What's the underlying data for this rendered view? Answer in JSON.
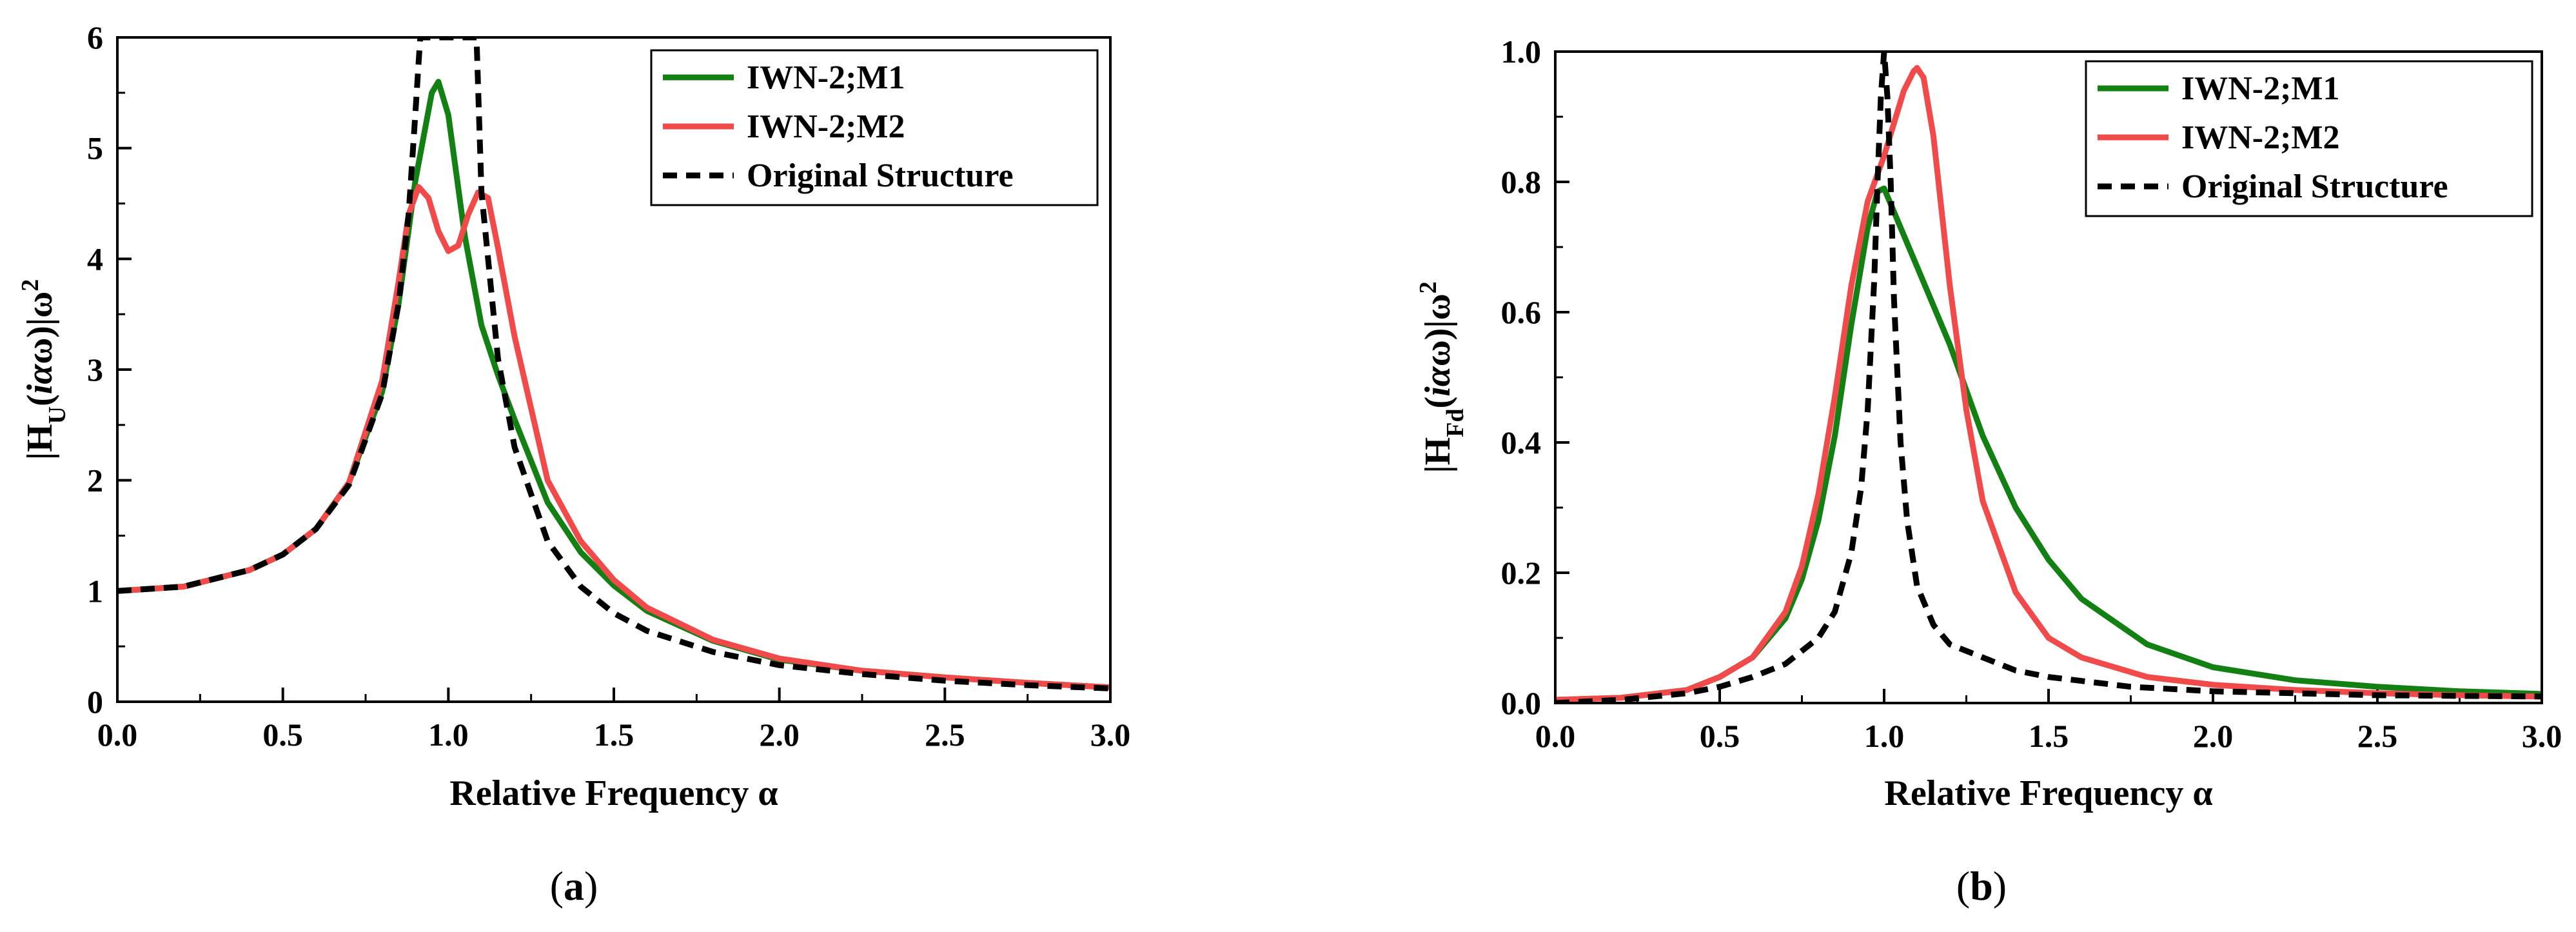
{
  "figure": {
    "panels": [
      {
        "caption_letter": "a"
      },
      {
        "caption_letter": "b"
      }
    ]
  },
  "colors": {
    "m1": "#138013",
    "m2": "#f04a4a",
    "original": "#000000"
  },
  "chart_data": [
    {
      "type": "line",
      "panel": "a",
      "xlabel": "Relative Frequency α",
      "ylabel": "|HU(iαω)|ω²",
      "xlim": [
        0,
        3
      ],
      "ylim": [
        0,
        6
      ],
      "xticks": [
        "0.0",
        "0.5",
        "1.0",
        "1.5",
        "2.0",
        "2.5",
        "3.0"
      ],
      "yticks": [
        "0",
        "1",
        "2",
        "3",
        "4",
        "5",
        "6"
      ],
      "legend_position": "top-right",
      "series": [
        {
          "name": "IWN-2;M1",
          "style": "solid",
          "color": "#138013",
          "x": [
            0,
            0.2,
            0.4,
            0.5,
            0.6,
            0.7,
            0.8,
            0.85,
            0.9,
            0.95,
            0.97,
            1.0,
            1.05,
            1.1,
            1.15,
            1.2,
            1.3,
            1.4,
            1.5,
            1.6,
            1.8,
            2.0,
            2.25,
            2.5,
            2.75,
            3.0
          ],
          "y": [
            1.0,
            1.04,
            1.19,
            1.33,
            1.56,
            1.98,
            2.8,
            3.6,
            4.7,
            5.5,
            5.6,
            5.3,
            4.2,
            3.4,
            2.95,
            2.55,
            1.8,
            1.35,
            1.05,
            0.82,
            0.55,
            0.38,
            0.28,
            0.22,
            0.17,
            0.13
          ]
        },
        {
          "name": "IWN-2;M2",
          "style": "solid",
          "color": "#f04a4a",
          "x": [
            0,
            0.2,
            0.4,
            0.5,
            0.6,
            0.7,
            0.8,
            0.85,
            0.88,
            0.91,
            0.94,
            0.97,
            1.0,
            1.03,
            1.06,
            1.09,
            1.12,
            1.15,
            1.2,
            1.3,
            1.4,
            1.5,
            1.6,
            1.8,
            2.0,
            2.25,
            2.5,
            2.75,
            3.0
          ],
          "y": [
            1.0,
            1.04,
            1.19,
            1.33,
            1.56,
            1.98,
            2.9,
            3.8,
            4.4,
            4.65,
            4.55,
            4.25,
            4.07,
            4.12,
            4.4,
            4.6,
            4.55,
            4.1,
            3.3,
            2.0,
            1.45,
            1.1,
            0.85,
            0.56,
            0.39,
            0.28,
            0.22,
            0.17,
            0.13
          ]
        },
        {
          "name": "Original Structure",
          "style": "dashed",
          "color": "#000000",
          "x": [
            0,
            0.2,
            0.4,
            0.5,
            0.6,
            0.7,
            0.8,
            0.85,
            0.88,
            0.9,
            0.915,
            1.085,
            1.1,
            1.15,
            1.2,
            1.3,
            1.4,
            1.5,
            1.6,
            1.8,
            2.0,
            2.25,
            2.5,
            2.75,
            3.0
          ],
          "y": [
            1.0,
            1.04,
            1.19,
            1.33,
            1.56,
            1.96,
            2.78,
            3.6,
            4.4,
            5.3,
            6.0,
            6.0,
            4.6,
            3.1,
            2.3,
            1.45,
            1.04,
            0.8,
            0.64,
            0.45,
            0.33,
            0.25,
            0.19,
            0.15,
            0.12
          ]
        }
      ]
    },
    {
      "type": "line",
      "panel": "b",
      "xlabel": "Relative Frequency α",
      "ylabel": "|HFd(iαω)|ω²",
      "xlim": [
        0,
        3
      ],
      "ylim": [
        0,
        1
      ],
      "xticks": [
        "0.0",
        "0.5",
        "1.0",
        "1.5",
        "2.0",
        "2.5",
        "3.0"
      ],
      "yticks": [
        "0.0",
        "0.2",
        "0.4",
        "0.6",
        "0.8",
        "1.0"
      ],
      "legend_position": "top-right",
      "series": [
        {
          "name": "IWN-2;M1",
          "style": "solid",
          "color": "#138013",
          "x": [
            0,
            0.2,
            0.4,
            0.5,
            0.6,
            0.7,
            0.75,
            0.8,
            0.85,
            0.9,
            0.95,
            0.98,
            1.0,
            1.05,
            1.1,
            1.15,
            1.2,
            1.3,
            1.4,
            1.5,
            1.6,
            1.8,
            2.0,
            2.25,
            2.5,
            2.75,
            3.0
          ],
          "y": [
            0.005,
            0.008,
            0.02,
            0.04,
            0.07,
            0.13,
            0.19,
            0.28,
            0.41,
            0.58,
            0.73,
            0.785,
            0.79,
            0.73,
            0.67,
            0.61,
            0.55,
            0.41,
            0.3,
            0.22,
            0.16,
            0.09,
            0.055,
            0.035,
            0.025,
            0.018,
            0.014
          ]
        },
        {
          "name": "IWN-2;M2",
          "style": "solid",
          "color": "#f04a4a",
          "x": [
            0,
            0.2,
            0.4,
            0.5,
            0.6,
            0.7,
            0.75,
            0.8,
            0.85,
            0.9,
            0.95,
            1.0,
            1.03,
            1.06,
            1.09,
            1.1,
            1.12,
            1.15,
            1.2,
            1.25,
            1.3,
            1.4,
            1.5,
            1.6,
            1.8,
            2.0,
            2.25,
            2.5,
            2.75,
            3.0
          ],
          "y": [
            0.005,
            0.008,
            0.02,
            0.04,
            0.07,
            0.14,
            0.21,
            0.32,
            0.47,
            0.64,
            0.77,
            0.84,
            0.89,
            0.94,
            0.97,
            0.975,
            0.96,
            0.87,
            0.64,
            0.45,
            0.31,
            0.17,
            0.1,
            0.07,
            0.04,
            0.028,
            0.02,
            0.015,
            0.012,
            0.01
          ]
        },
        {
          "name": "Original Structure",
          "style": "dashed",
          "color": "#000000",
          "x": [
            0,
            0.2,
            0.4,
            0.5,
            0.6,
            0.7,
            0.8,
            0.85,
            0.9,
            0.93,
            0.95,
            0.97,
            0.98,
            0.99,
            1.0,
            1.01,
            1.02,
            1.03,
            1.05,
            1.07,
            1.1,
            1.15,
            1.2,
            1.3,
            1.4,
            1.5,
            1.75,
            2.0,
            2.5,
            3.0
          ],
          "y": [
            0.0,
            0.005,
            0.015,
            0.025,
            0.04,
            0.06,
            0.1,
            0.14,
            0.23,
            0.33,
            0.45,
            0.65,
            0.8,
            0.93,
            1.0,
            0.93,
            0.8,
            0.62,
            0.4,
            0.28,
            0.18,
            0.12,
            0.09,
            0.07,
            0.05,
            0.04,
            0.025,
            0.018,
            0.012,
            0.01
          ]
        }
      ]
    }
  ]
}
